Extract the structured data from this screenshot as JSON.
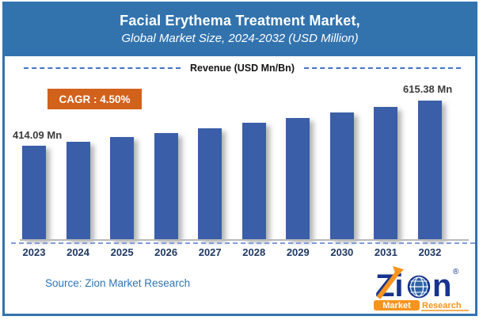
{
  "header": {
    "title": "Facial Erythema Treatment Market,",
    "subtitle": "Global Market Size, 2024-2032 (USD Million)"
  },
  "cagr_badge": "CAGR : 4.50%",
  "chart_data": {
    "type": "bar",
    "title": "Revenue (USD Mn/Bn)",
    "categories": [
      "2023",
      "2024",
      "2025",
      "2026",
      "2027",
      "2028",
      "2029",
      "2030",
      "2031",
      "2032"
    ],
    "values": [
      414.09,
      432.72,
      452.2,
      472.55,
      493.81,
      516.03,
      539.25,
      563.52,
      588.88,
      615.38
    ],
    "unit": "USD Mn",
    "ylim": [
      0,
      650
    ],
    "grid": "off",
    "legend": "none",
    "bar_color": "#3A5EA8",
    "cagr": "4.50%",
    "data_labels": {
      "first": "414.09 Mn",
      "last": "615.38 Mn"
    }
  },
  "footer": {
    "source": "Source: Zion Market Research"
  },
  "logo": {
    "zi": "Zi",
    "n": "n",
    "registered": "®",
    "market": "Market",
    "research": "Research"
  },
  "colors": {
    "header_blue": "#3273AE",
    "bar_blue": "#3A5EA8",
    "cagr_orange": "#D2611C",
    "year_label_navy": "#1F3864",
    "source_blue": "#2E74B5",
    "logo_navy": "#16338E",
    "logo_orange": "#F7941D"
  }
}
